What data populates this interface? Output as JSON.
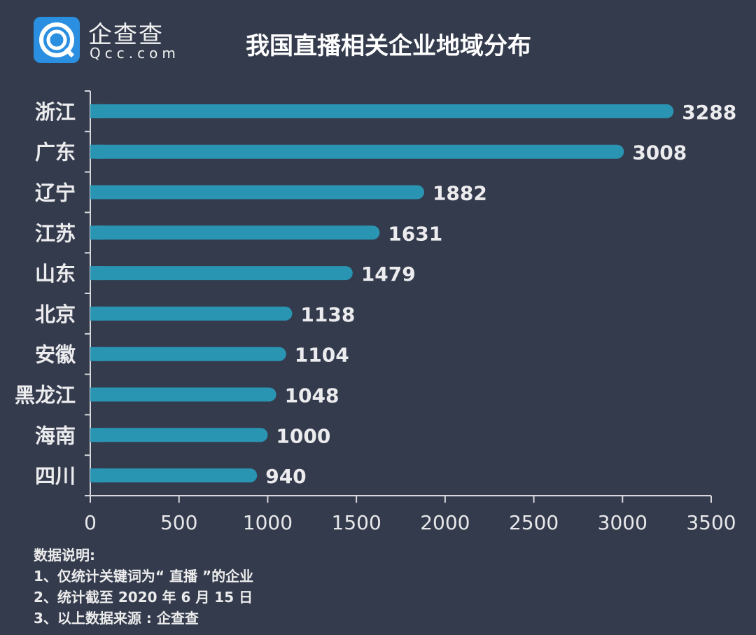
{
  "brand": {
    "name": "企查查",
    "domain": "Qcc.com",
    "color": "#2a8fe0",
    "icon": "qcc-logo-icon"
  },
  "chart_data": {
    "type": "bar",
    "orientation": "horizontal",
    "title": "我国直播相关企业地域分布",
    "categories": [
      "浙江",
      "广东",
      "辽宁",
      "江苏",
      "山东",
      "北京",
      "安徽",
      "黑龙江",
      "海南",
      "四川"
    ],
    "values": [
      3288,
      3008,
      1882,
      1631,
      1479,
      1138,
      1104,
      1048,
      1000,
      940
    ],
    "xlim": [
      0,
      3500
    ],
    "xticks": [
      0,
      500,
      1000,
      1500,
      2000,
      2500,
      3000,
      3500
    ],
    "xlabel": "",
    "ylabel": "",
    "grid": false,
    "bar_color": "#2a94b3",
    "background": "#343b4d"
  },
  "notes": {
    "heading": "数据说明:",
    "lines": [
      "1、仅统计关键词为“ 直播 ”的企业",
      "2、统计截至 2020 年 6 月 15 日",
      "3、以上数据来源 : 企查查"
    ]
  }
}
